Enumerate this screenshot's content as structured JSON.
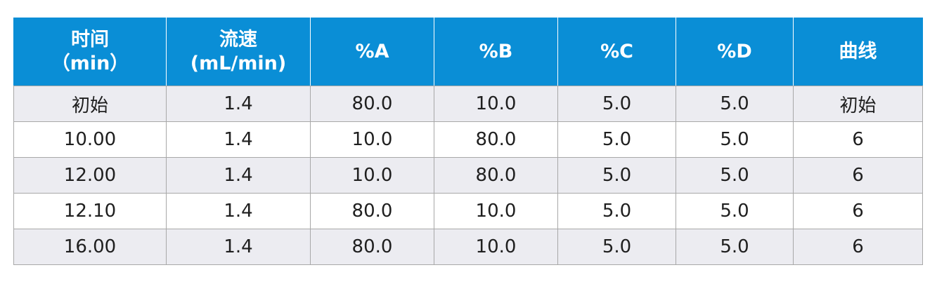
{
  "header": {
    "time_line1": "时间",
    "time_line2": "（min）",
    "flow_line1": "流速",
    "flow_line2": "(mL/min)",
    "pA": "%A",
    "pB": "%B",
    "pC": "%C",
    "pD": "%D",
    "curve": "曲线"
  },
  "rows": [
    {
      "time": "初始",
      "flow": "1.4",
      "a": "80.0",
      "b": "10.0",
      "c": "5.0",
      "d": "5.0",
      "curve": "初始"
    },
    {
      "time": "10.00",
      "flow": "1.4",
      "a": "10.0",
      "b": "80.0",
      "c": "5.0",
      "d": "5.0",
      "curve": "6"
    },
    {
      "time": "12.00",
      "flow": "1.4",
      "a": "10.0",
      "b": "80.0",
      "c": "5.0",
      "d": "5.0",
      "curve": "6"
    },
    {
      "time": "12.10",
      "flow": "1.4",
      "a": "80.0",
      "b": "10.0",
      "c": "5.0",
      "d": "5.0",
      "curve": "6"
    },
    {
      "time": "16.00",
      "flow": "1.4",
      "a": "80.0",
      "b": "10.0",
      "c": "5.0",
      "d": "5.0",
      "curve": "6"
    }
  ]
}
